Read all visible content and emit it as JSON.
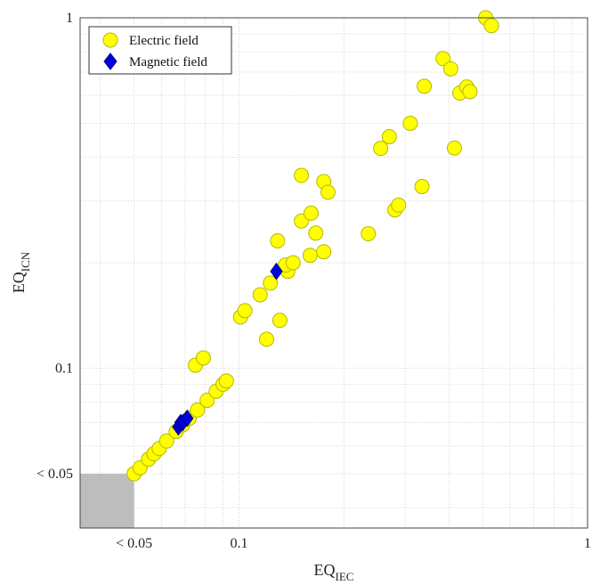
{
  "chart_data": {
    "type": "scatter",
    "xscale": "log",
    "yscale": "log",
    "xlim": [
      0.035,
      1
    ],
    "ylim": [
      0.035,
      1
    ],
    "grid": true,
    "legend_position": "top-left",
    "xlabel": {
      "base": "EQ",
      "sub": "IEC"
    },
    "ylabel": {
      "base": "EQ",
      "sub": "ICN"
    },
    "x_ticks": [
      {
        "value": 0.05,
        "label": "< 0.05"
      },
      {
        "value": 0.1,
        "label": "0.1"
      },
      {
        "value": 1,
        "label": "1"
      }
    ],
    "y_ticks": [
      {
        "value": 0.05,
        "label": "< 0.05"
      },
      {
        "value": 0.1,
        "label": "0.1"
      },
      {
        "value": 1,
        "label": "1"
      }
    ],
    "below_threshold_region": {
      "x": [
        0.035,
        0.05
      ],
      "y": [
        0.035,
        0.05
      ],
      "color": "#bdbdbd"
    },
    "series": [
      {
        "name": "Electric field",
        "marker": "circle",
        "color": "#ffff00",
        "edge_color": "#b8b800",
        "points": [
          [
            0.05,
            0.05
          ],
          [
            0.052,
            0.052
          ],
          [
            0.055,
            0.055
          ],
          [
            0.057,
            0.057
          ],
          [
            0.059,
            0.059
          ],
          [
            0.062,
            0.062
          ],
          [
            0.066,
            0.066
          ],
          [
            0.069,
            0.069
          ],
          [
            0.072,
            0.072
          ],
          [
            0.076,
            0.076
          ],
          [
            0.081,
            0.081
          ],
          [
            0.086,
            0.086
          ],
          [
            0.09,
            0.09
          ],
          [
            0.092,
            0.092
          ],
          [
            0.075,
            0.102
          ],
          [
            0.079,
            0.107
          ],
          [
            0.101,
            0.14
          ],
          [
            0.104,
            0.146
          ],
          [
            0.115,
            0.162
          ],
          [
            0.12,
            0.121
          ],
          [
            0.123,
            0.175
          ],
          [
            0.131,
            0.137
          ],
          [
            0.129,
            0.231
          ],
          [
            0.138,
            0.189
          ],
          [
            0.136,
            0.197
          ],
          [
            0.143,
            0.2
          ],
          [
            0.151,
            0.263
          ],
          [
            0.151,
            0.355
          ],
          [
            0.161,
            0.277
          ],
          [
            0.16,
            0.21
          ],
          [
            0.166,
            0.243
          ],
          [
            0.175,
            0.215
          ],
          [
            0.175,
            0.341
          ],
          [
            0.18,
            0.318
          ],
          [
            0.235,
            0.242
          ],
          [
            0.255,
            0.424
          ],
          [
            0.27,
            0.458
          ],
          [
            0.28,
            0.283
          ],
          [
            0.287,
            0.292
          ],
          [
            0.31,
            0.5
          ],
          [
            0.335,
            0.33
          ],
          [
            0.34,
            0.638
          ],
          [
            0.385,
            0.765
          ],
          [
            0.405,
            0.715
          ],
          [
            0.415,
            0.425
          ],
          [
            0.43,
            0.61
          ],
          [
            0.45,
            0.635
          ],
          [
            0.46,
            0.616
          ],
          [
            0.51,
            1.0
          ],
          [
            0.53,
            0.95
          ]
        ]
      },
      {
        "name": "Magnetic field",
        "marker": "diamond",
        "color": "#0000dd",
        "edge_color": "#00008a",
        "points": [
          [
            0.067,
            0.068
          ],
          [
            0.068,
            0.07
          ],
          [
            0.069,
            0.07
          ],
          [
            0.071,
            0.072
          ],
          [
            0.128,
            0.189
          ]
        ]
      }
    ]
  }
}
